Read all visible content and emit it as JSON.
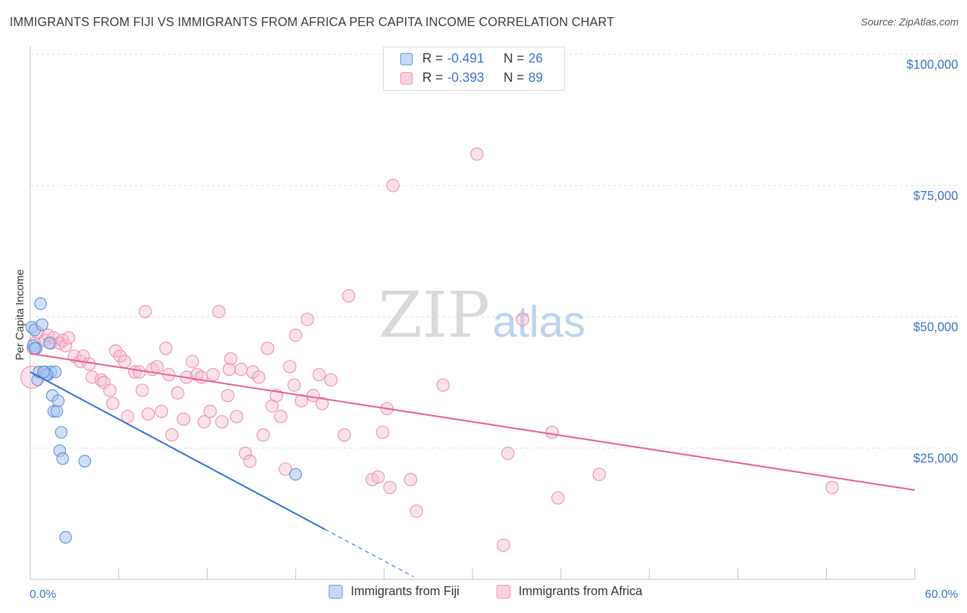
{
  "title": "IMMIGRANTS FROM FIJI VS IMMIGRANTS FROM AFRICA PER CAPITA INCOME CORRELATION CHART",
  "source": "Source: ZipAtlas.com",
  "watermark": {
    "zip": "ZIP",
    "atlas": "atlas"
  },
  "legend": {
    "fiji": {
      "r_label": "R = ",
      "r_value": "-0.491",
      "n_label": "N = ",
      "n_value": "26"
    },
    "africa": {
      "r_label": "R = ",
      "r_value": "-0.393",
      "n_label": "N = ",
      "n_value": "89"
    }
  },
  "bottom_legend": {
    "fiji": "Immigrants from Fiji",
    "africa": "Immigrants from Africa"
  },
  "colors": {
    "fiji_fill": "#a9c8f0",
    "fiji_stroke": "#5b8fd9",
    "fiji_line": "#2f72d6",
    "africa_fill": "#f7bfd0",
    "africa_stroke": "#ec8fae",
    "africa_line": "#e8608f",
    "tick_text": "#3a72c8",
    "grid": "#dcdcdc"
  },
  "chart_data": {
    "type": "scatter",
    "xlabel": "",
    "ylabel": "Per Capita Income",
    "xlim": [
      0,
      60
    ],
    "ylim": [
      0,
      100000
    ],
    "x_tick_labels": {
      "left": "0.0%",
      "right": "60.0%"
    },
    "y_ticks": [
      {
        "value": 25000,
        "label": "$25,000"
      },
      {
        "value": 50000,
        "label": "$50,000"
      },
      {
        "value": 75000,
        "label": "$75,000"
      },
      {
        "value": 100000,
        "label": "$100,000"
      }
    ],
    "grid": true,
    "series": [
      {
        "name": "Immigrants from Fiji",
        "points": [
          [
            0.1,
            48000
          ],
          [
            0.2,
            44500
          ],
          [
            0.3,
            47500
          ],
          [
            0.4,
            44000
          ],
          [
            0.5,
            38000
          ],
          [
            0.6,
            39500
          ],
          [
            0.7,
            52500
          ],
          [
            0.8,
            48500
          ],
          [
            1.0,
            39500
          ],
          [
            1.2,
            39000
          ],
          [
            1.3,
            45000
          ],
          [
            1.4,
            39500
          ],
          [
            1.5,
            35000
          ],
          [
            1.6,
            32000
          ],
          [
            1.7,
            39500
          ],
          [
            1.8,
            32000
          ],
          [
            1.9,
            34000
          ],
          [
            2.0,
            24500
          ],
          [
            2.1,
            28000
          ],
          [
            2.2,
            23000
          ],
          [
            2.4,
            8000
          ],
          [
            3.7,
            22500
          ],
          [
            18.0,
            20000
          ],
          [
            1.1,
            39000
          ],
          [
            0.9,
            39500
          ],
          [
            0.3,
            44000
          ]
        ],
        "trend": {
          "x": [
            0,
            20
          ],
          "y": [
            39500,
            9500
          ]
        },
        "trend_extension": {
          "x": [
            20,
            26
          ],
          "y": [
            9500,
            500
          ]
        }
      },
      {
        "name": "Immigrants from Africa",
        "points": [
          [
            0.2,
            44000
          ],
          [
            0.3,
            45000
          ],
          [
            0.5,
            47000
          ],
          [
            1.0,
            45500
          ],
          [
            1.2,
            46500
          ],
          [
            1.4,
            45000
          ],
          [
            1.6,
            46000
          ],
          [
            2.0,
            45000
          ],
          [
            2.2,
            45500
          ],
          [
            2.4,
            44500
          ],
          [
            2.6,
            46000
          ],
          [
            3.0,
            42500
          ],
          [
            3.4,
            41500
          ],
          [
            3.6,
            42500
          ],
          [
            4.0,
            41000
          ],
          [
            4.2,
            38500
          ],
          [
            4.8,
            38000
          ],
          [
            5.0,
            37500
          ],
          [
            5.4,
            36000
          ],
          [
            5.6,
            33500
          ],
          [
            5.8,
            43500
          ],
          [
            6.1,
            42500
          ],
          [
            6.4,
            41500
          ],
          [
            6.6,
            31000
          ],
          [
            7.1,
            39500
          ],
          [
            7.4,
            39500
          ],
          [
            7.6,
            36000
          ],
          [
            7.8,
            51000
          ],
          [
            8.0,
            31500
          ],
          [
            8.3,
            40000
          ],
          [
            8.6,
            40500
          ],
          [
            8.9,
            32000
          ],
          [
            9.2,
            44000
          ],
          [
            9.4,
            39000
          ],
          [
            9.6,
            27500
          ],
          [
            10.0,
            35500
          ],
          [
            10.4,
            30500
          ],
          [
            10.6,
            38500
          ],
          [
            11.0,
            41500
          ],
          [
            11.3,
            39000
          ],
          [
            11.6,
            38500
          ],
          [
            11.8,
            30000
          ],
          [
            12.2,
            32000
          ],
          [
            12.4,
            39000
          ],
          [
            12.8,
            51000
          ],
          [
            13.0,
            30000
          ],
          [
            13.4,
            35000
          ],
          [
            13.6,
            42000
          ],
          [
            14.0,
            31000
          ],
          [
            14.3,
            40000
          ],
          [
            14.6,
            24000
          ],
          [
            14.9,
            22500
          ],
          [
            15.1,
            39500
          ],
          [
            15.5,
            38500
          ],
          [
            15.8,
            27500
          ],
          [
            16.1,
            44000
          ],
          [
            16.4,
            33000
          ],
          [
            16.7,
            35000
          ],
          [
            17.0,
            31000
          ],
          [
            17.3,
            21000
          ],
          [
            17.6,
            40500
          ],
          [
            17.9,
            37000
          ],
          [
            18.0,
            46500
          ],
          [
            18.4,
            34000
          ],
          [
            18.8,
            49500
          ],
          [
            19.2,
            35000
          ],
          [
            19.6,
            39000
          ],
          [
            19.8,
            33500
          ],
          [
            20.4,
            38000
          ],
          [
            21.3,
            27500
          ],
          [
            21.6,
            54000
          ],
          [
            23.2,
            19000
          ],
          [
            23.6,
            19500
          ],
          [
            23.9,
            28000
          ],
          [
            24.2,
            32500
          ],
          [
            24.4,
            17500
          ],
          [
            24.6,
            75000
          ],
          [
            25.8,
            19000
          ],
          [
            26.2,
            13000
          ],
          [
            28.0,
            37000
          ],
          [
            30.3,
            81000
          ],
          [
            32.1,
            6500
          ],
          [
            32.4,
            24000
          ],
          [
            33.4,
            49500
          ],
          [
            35.4,
            28000
          ],
          [
            35.8,
            15500
          ],
          [
            38.6,
            20000
          ],
          [
            54.4,
            17500
          ],
          [
            13.5,
            40000
          ]
        ],
        "trend": {
          "x": [
            0,
            60
          ],
          "y": [
            43000,
            17000
          ]
        }
      }
    ]
  }
}
